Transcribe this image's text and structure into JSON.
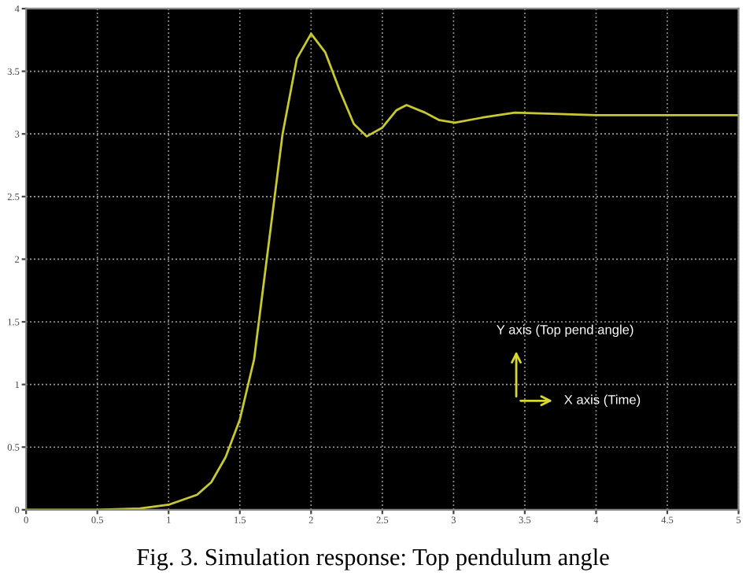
{
  "chart_data": {
    "type": "line",
    "x": [
      0,
      0.5,
      0.8,
      1.0,
      1.2,
      1.3,
      1.4,
      1.5,
      1.6,
      1.7,
      1.8,
      1.9,
      2.0,
      2.1,
      2.2,
      2.3,
      2.39,
      2.5,
      2.6,
      2.67,
      2.8,
      2.9,
      3.01,
      3.2,
      3.43,
      3.7,
      4.0,
      4.5,
      5.0
    ],
    "series": [
      {
        "color": "#c8c832",
        "values": [
          0,
          0,
          0.01,
          0.04,
          0.12,
          0.22,
          0.42,
          0.72,
          1.2,
          2.1,
          3.0,
          3.6,
          3.8,
          3.65,
          3.35,
          3.08,
          2.98,
          3.05,
          3.19,
          3.23,
          3.17,
          3.11,
          3.09,
          3.13,
          3.17,
          3.16,
          3.15,
          3.15,
          3.15
        ]
      }
    ],
    "xlim": [
      0,
      5
    ],
    "ylim": [
      0,
      4
    ],
    "xticks": [
      0,
      0.5,
      1,
      1.5,
      2,
      2.5,
      3,
      3.5,
      4,
      4.5,
      5
    ],
    "yticks": [
      0,
      0.5,
      1,
      1.5,
      2,
      2.5,
      3,
      3.5,
      4
    ],
    "grid": true,
    "line_style": "solid",
    "marker": "none",
    "annotations": [
      "Y axis (Top pend angle)",
      "X axis (Time)",
      "Fig. 3. Simulation response: Top pendulum angle"
    ]
  }
}
